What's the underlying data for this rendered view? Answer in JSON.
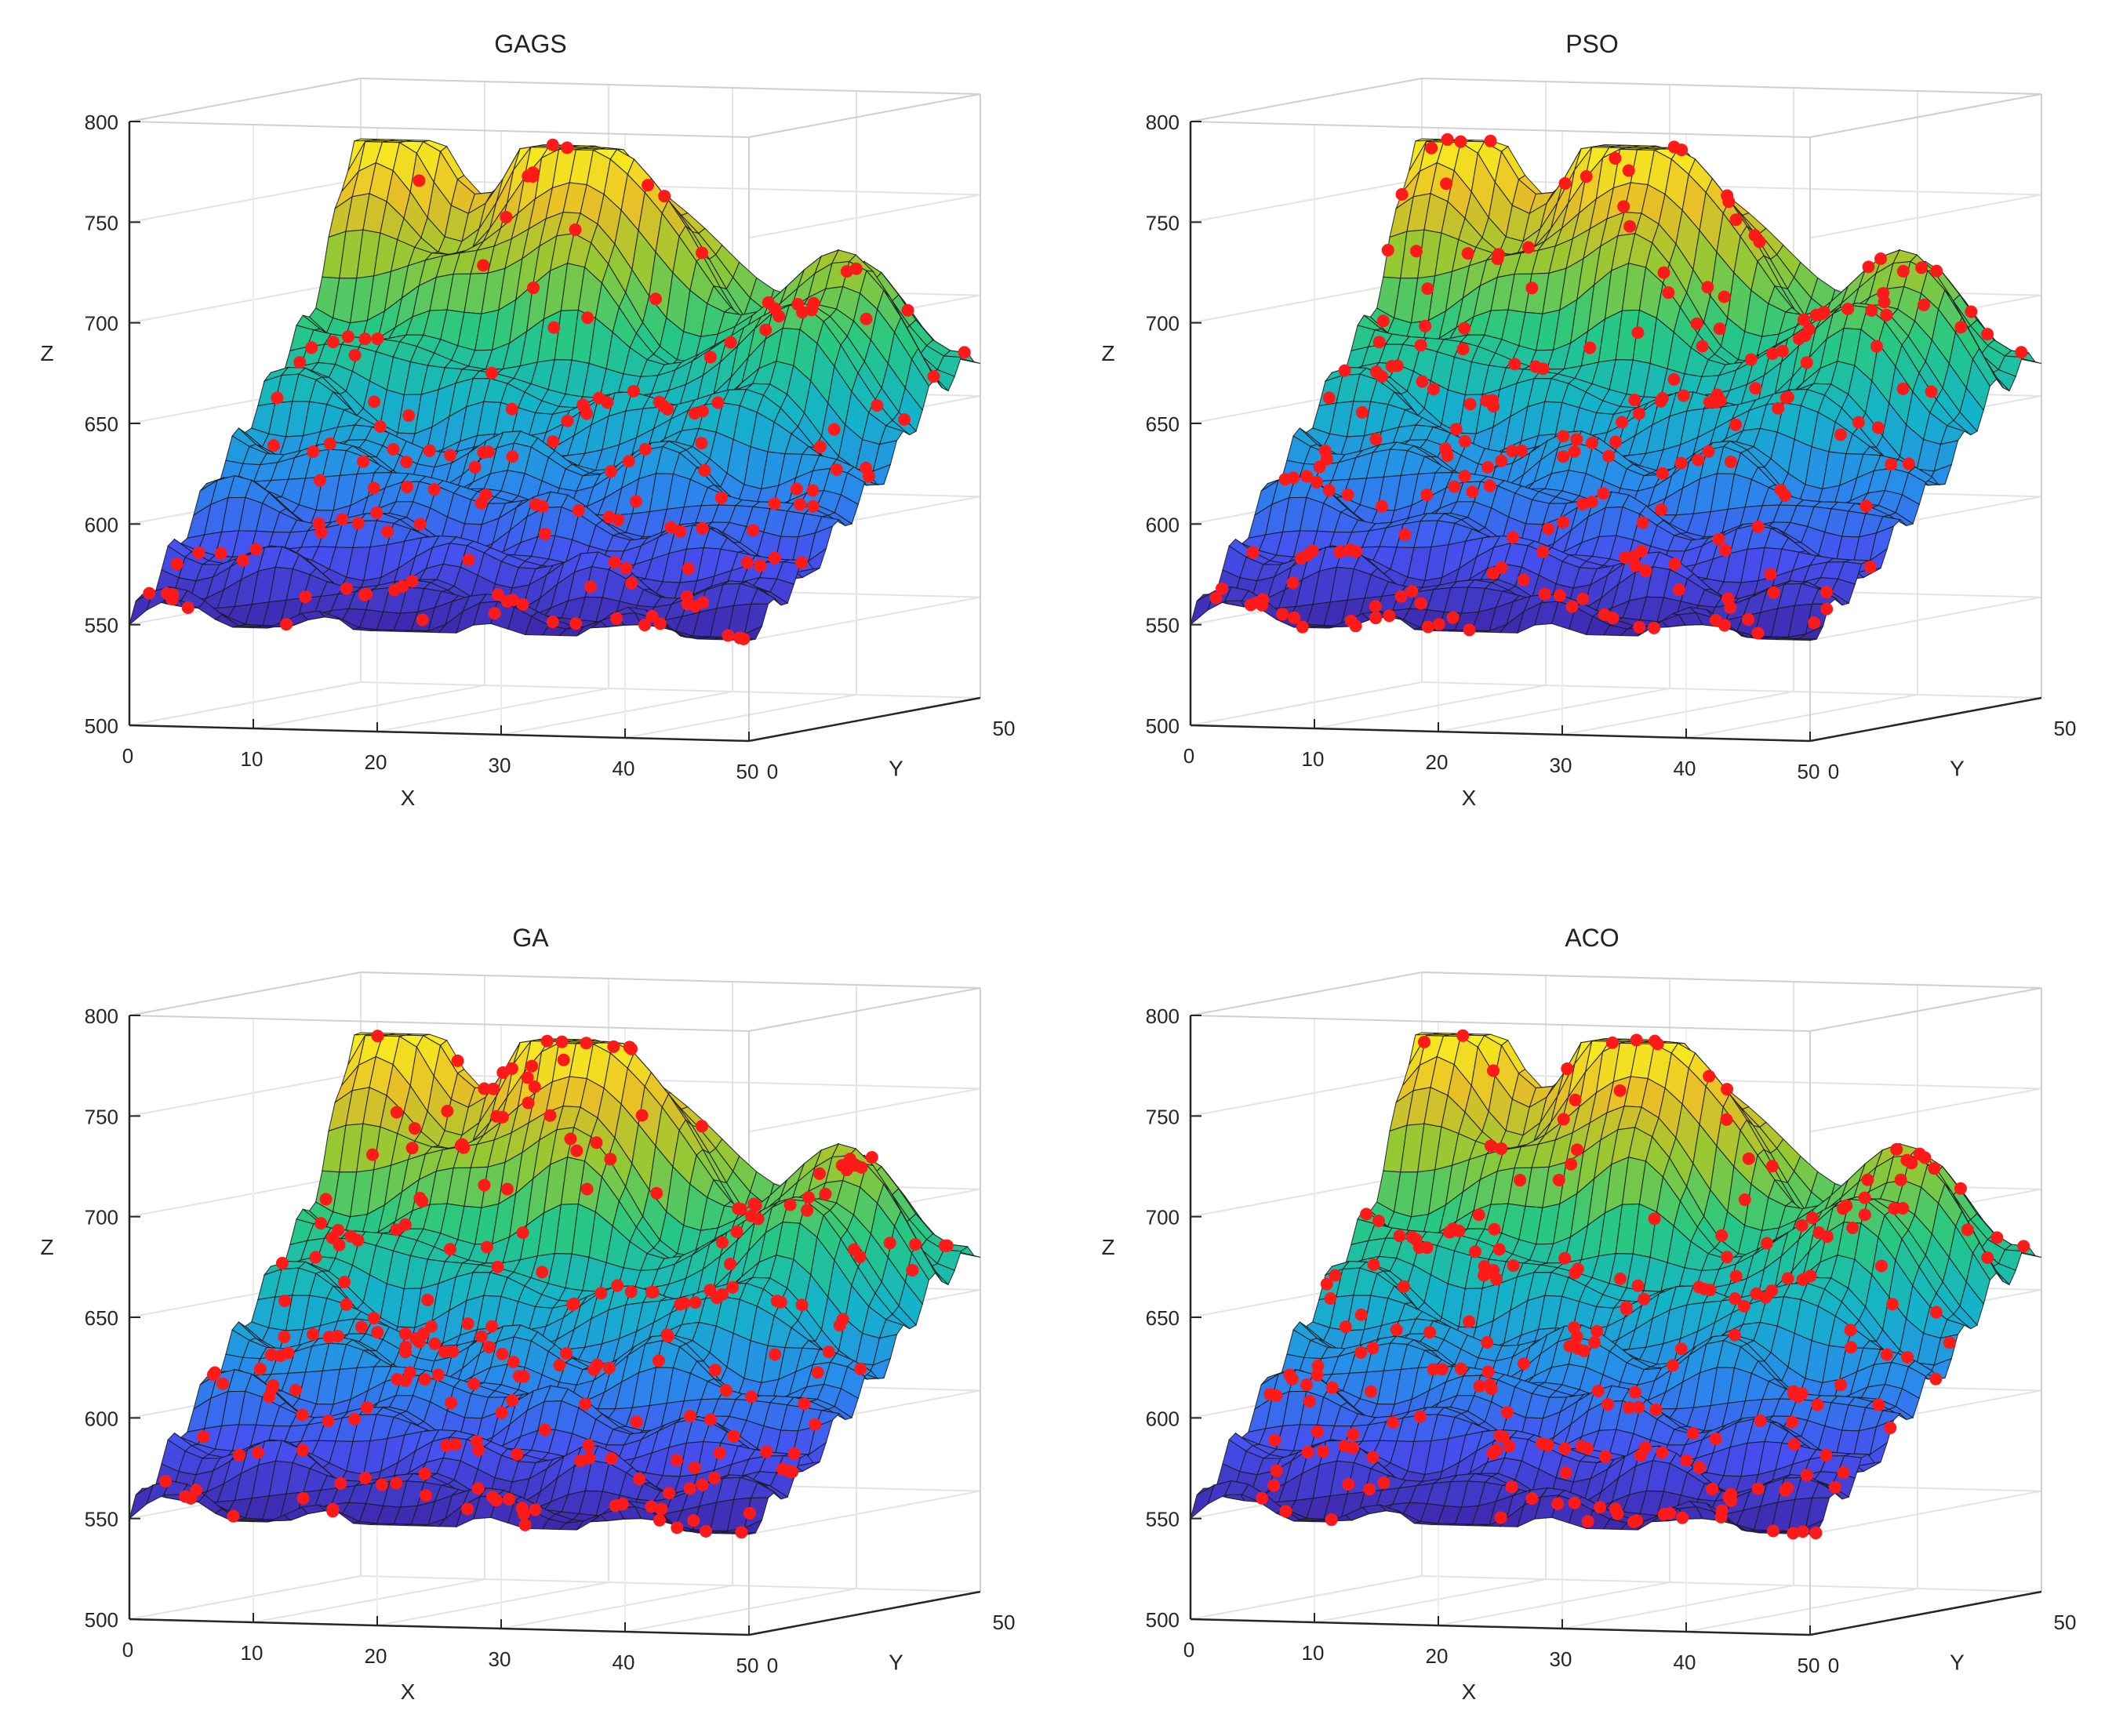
{
  "chart_data": [
    {
      "type": "surface",
      "title": "GAGS",
      "xlabel": "X",
      "ylabel": "Y",
      "zlabel": "Z",
      "xlim": [
        0,
        50
      ],
      "ylim": [
        0,
        50
      ],
      "zlim": [
        500,
        800
      ],
      "x_ticks": [
        "0",
        "10",
        "20",
        "30",
        "40",
        "50"
      ],
      "y_ticks": [
        "0",
        "50"
      ],
      "z_ticks": [
        "500",
        "550",
        "600",
        "650",
        "700",
        "750",
        "800"
      ],
      "colormap": "parula",
      "marker_color": "#ff1a1a",
      "surface_z_range": [
        550,
        770
      ],
      "sample_points": 160,
      "seed": 11
    },
    {
      "type": "surface",
      "title": "PSO",
      "xlabel": "X",
      "ylabel": "Y",
      "zlabel": "Z",
      "xlim": [
        0,
        50
      ],
      "ylim": [
        0,
        50
      ],
      "zlim": [
        500,
        800
      ],
      "x_ticks": [
        "0",
        "10",
        "20",
        "30",
        "40",
        "50"
      ],
      "y_ticks": [
        "0",
        "50"
      ],
      "z_ticks": [
        "500",
        "550",
        "600",
        "650",
        "700",
        "750",
        "800"
      ],
      "colormap": "parula",
      "marker_color": "#ff1a1a",
      "surface_z_range": [
        550,
        770
      ],
      "sample_points": 220,
      "seed": 23
    },
    {
      "type": "surface",
      "title": "GA",
      "xlabel": "X",
      "ylabel": "Y",
      "zlabel": "Z",
      "xlim": [
        0,
        50
      ],
      "ylim": [
        0,
        50
      ],
      "zlim": [
        500,
        800
      ],
      "x_ticks": [
        "0",
        "10",
        "20",
        "30",
        "40",
        "50"
      ],
      "y_ticks": [
        "0",
        "50"
      ],
      "z_ticks": [
        "500",
        "550",
        "600",
        "650",
        "700",
        "750",
        "800"
      ],
      "colormap": "parula",
      "marker_color": "#ff1a1a",
      "surface_z_range": [
        550,
        770
      ],
      "sample_points": 240,
      "seed": 37
    },
    {
      "type": "surface",
      "title": "ACO",
      "xlabel": "X",
      "ylabel": "Y",
      "zlabel": "Z",
      "xlim": [
        0,
        50
      ],
      "ylim": [
        0,
        50
      ],
      "zlim": [
        500,
        800
      ],
      "x_ticks": [
        "0",
        "10",
        "20",
        "30",
        "40",
        "50"
      ],
      "y_ticks": [
        "0",
        "50"
      ],
      "z_ticks": [
        "500",
        "550",
        "600",
        "650",
        "700",
        "750",
        "800"
      ],
      "colormap": "parula",
      "marker_color": "#ff1a1a",
      "surface_z_range": [
        550,
        770
      ],
      "sample_points": 230,
      "seed": 53
    }
  ]
}
